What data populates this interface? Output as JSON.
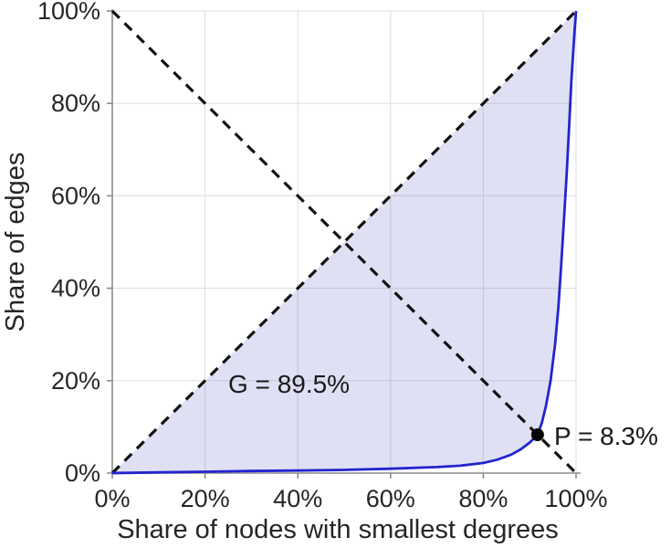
{
  "chart_data": {
    "type": "area",
    "title": "",
    "xlabel": "Share of nodes with smallest degrees",
    "ylabel": "Share of edges",
    "xlim": [
      0,
      100
    ],
    "ylim": [
      0,
      100
    ],
    "grid": true,
    "legend": "none",
    "tick_values": [
      0,
      20,
      40,
      60,
      80,
      100
    ],
    "x_tick_labels": [
      "0%",
      "20%",
      "40%",
      "60%",
      "80%",
      "100%"
    ],
    "y_tick_labels": [
      "0%",
      "20%",
      "40%",
      "60%",
      "80%",
      "100%"
    ],
    "annotations": {
      "gini_label": "G = 89.5%",
      "gini_value": 89.5,
      "pareto_label": "P = 8.3%",
      "pareto_value": 8.3,
      "pareto_point": {
        "x": 91.7,
        "y": 8.3
      }
    },
    "reference_lines": [
      {
        "name": "equality-diagonal",
        "from": [
          0,
          0
        ],
        "to": [
          100,
          100
        ],
        "style": "dashed",
        "color": "#111111"
      },
      {
        "name": "anti-diagonal",
        "from": [
          0,
          100
        ],
        "to": [
          100,
          0
        ],
        "style": "dashed",
        "color": "#111111"
      }
    ],
    "series": [
      {
        "name": "lorenz-curve-of-degree-distribution",
        "type": "line",
        "color": "#2424cf",
        "fill_between_equality_line": true,
        "fill_color": "rgba(70,70,190,0.17)",
        "points": [
          [
            0,
            0
          ],
          [
            10,
            0.15
          ],
          [
            20,
            0.3
          ],
          [
            30,
            0.45
          ],
          [
            40,
            0.55
          ],
          [
            50,
            0.7
          ],
          [
            60,
            0.95
          ],
          [
            70,
            1.3
          ],
          [
            75,
            1.6
          ],
          [
            80,
            2.2
          ],
          [
            83,
            2.9
          ],
          [
            86,
            4.0
          ],
          [
            88,
            5.1
          ],
          [
            90,
            6.6
          ],
          [
            91.7,
            8.3
          ],
          [
            92.6,
            10.8
          ],
          [
            93.5,
            14.5
          ],
          [
            94.5,
            20
          ],
          [
            95.5,
            28
          ],
          [
            96.2,
            36
          ],
          [
            96.8,
            45
          ],
          [
            97.4,
            55
          ],
          [
            98,
            65
          ],
          [
            98.5,
            75
          ],
          [
            99,
            85
          ],
          [
            99.4,
            91.5
          ],
          [
            99.7,
            96
          ],
          [
            100,
            100
          ]
        ]
      }
    ],
    "colors": {
      "curve": "#2424cf",
      "fill": "rgba(70,70,190,0.17)",
      "dashed": "#111111",
      "grid": "#e3e3e3",
      "axis": "#8c8c8c",
      "text": "#262626",
      "point": "#000000",
      "background": "#ffffff"
    }
  }
}
